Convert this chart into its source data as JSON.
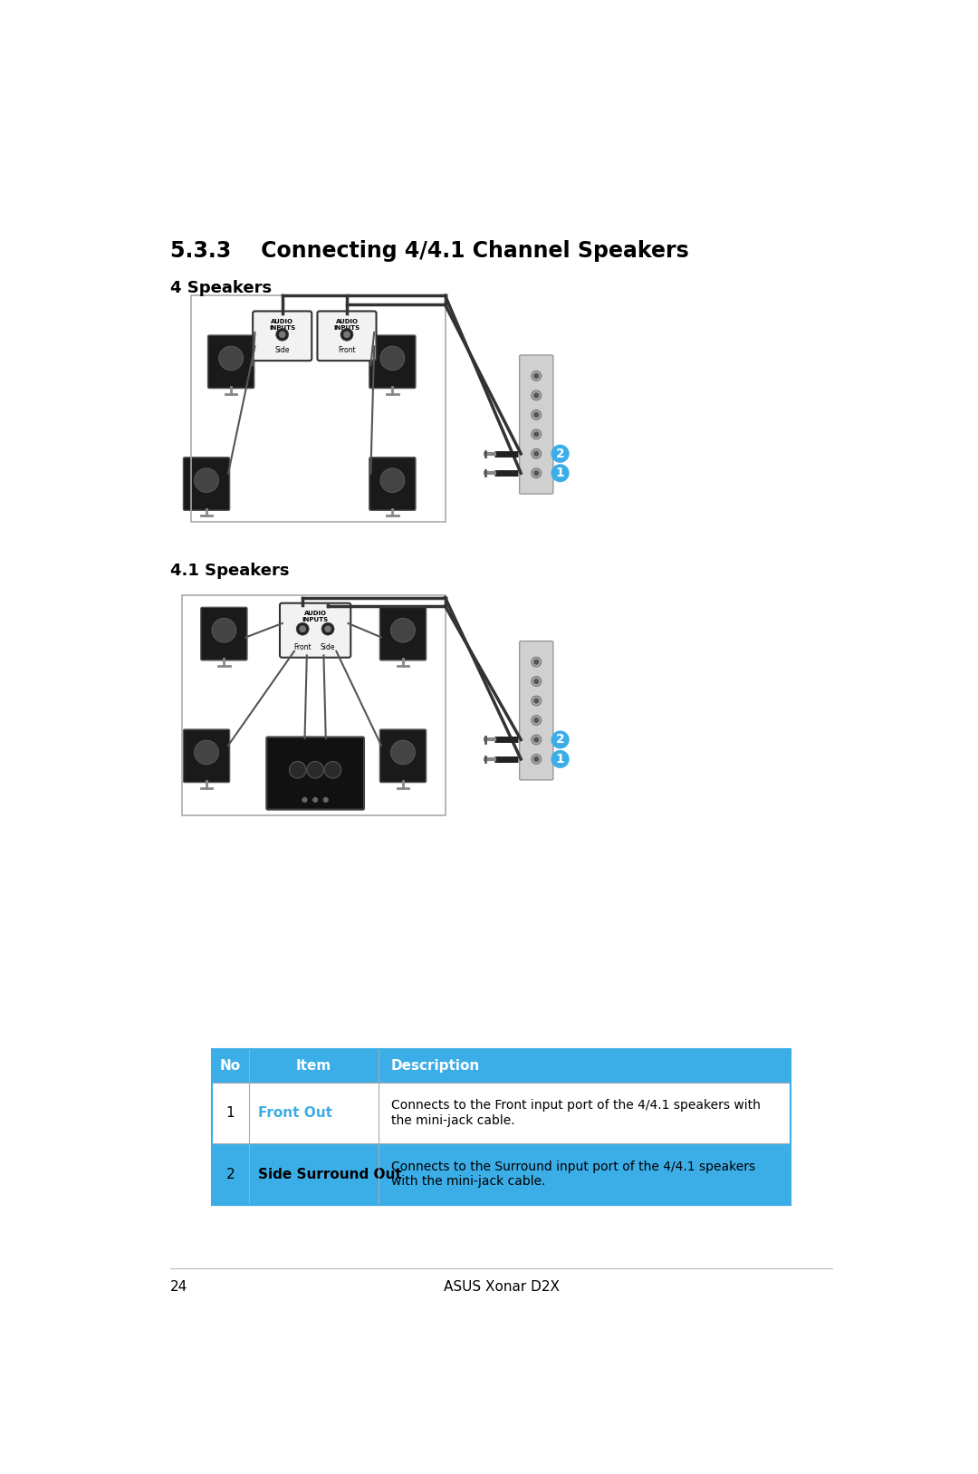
{
  "title": "5.3.3    Connecting 4/4.1 Channel Speakers",
  "section1_label": "4 Speakers",
  "section2_label": "4.1 Speakers",
  "table_header": [
    "No",
    "Item",
    "Description"
  ],
  "table_rows": [
    [
      "1",
      "Front Out",
      "Connects to the Front input port of the 4/4.1 speakers with\nthe mini-jack cable."
    ],
    [
      "2",
      "Side Surround Out",
      "Connects to the Surround input port of the 4/4.1 speakers\nwith the mini-jack cable."
    ]
  ],
  "header_bg": "#3baee8",
  "header_text_color": "#ffffff",
  "row1_bg": "#ffffff",
  "row2_bg": "#3baee8",
  "page_number": "24",
  "page_footer": "ASUS Xonar D2X",
  "bg_color": "#ffffff",
  "text_color": "#000000",
  "badge_color": "#3baee8",
  "border_color": "#cccccc",
  "speaker_color": "#1a1a1a",
  "soundcard_color": "#cccccc",
  "cable_color": "#333333",
  "wire_color": "#555555"
}
